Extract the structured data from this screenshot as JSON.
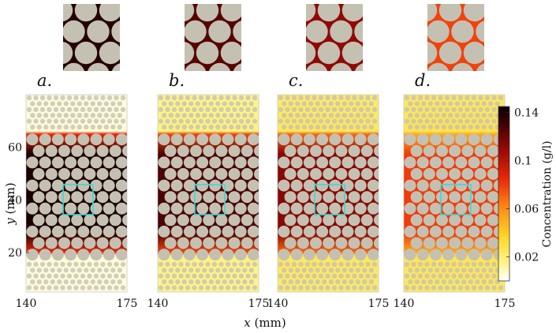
{
  "chart_data": {
    "type": "heatmap",
    "panels": [
      {
        "label": "a.",
        "level": 0.97,
        "band": 0.02
      },
      {
        "label": "b.",
        "level": 0.88,
        "band": 0.17
      },
      {
        "label": "c.",
        "level": 0.78,
        "band": 0.25
      },
      {
        "label": "d.",
        "level": 0.55,
        "band": 0.27
      }
    ],
    "xlabel_var": "x",
    "xlabel_unit": "(mm)",
    "ylabel_var": "y",
    "ylabel_unit": "(mm)",
    "x_ticks": [
      "140",
      "175"
    ],
    "xlim": [
      140,
      175
    ],
    "y_ticks": [
      {
        "value": 20,
        "label": "20"
      },
      {
        "value": 40,
        "label": "40"
      },
      {
        "value": 60,
        "label": "60"
      }
    ],
    "ylim": [
      5,
      80
    ],
    "colorbar": {
      "label": "Concentration  (g/l)",
      "range": [
        0,
        0.145
      ],
      "ticks": [
        {
          "value": 0.02,
          "label": "0.02"
        },
        {
          "value": 0.06,
          "label": "0.06"
        },
        {
          "value": 0.1,
          "label": "0.1"
        },
        {
          "value": 0.14,
          "label": "0.14"
        }
      ]
    },
    "inset_color": "#3fd6d6",
    "obstacle_color": "#c4c1b3"
  }
}
